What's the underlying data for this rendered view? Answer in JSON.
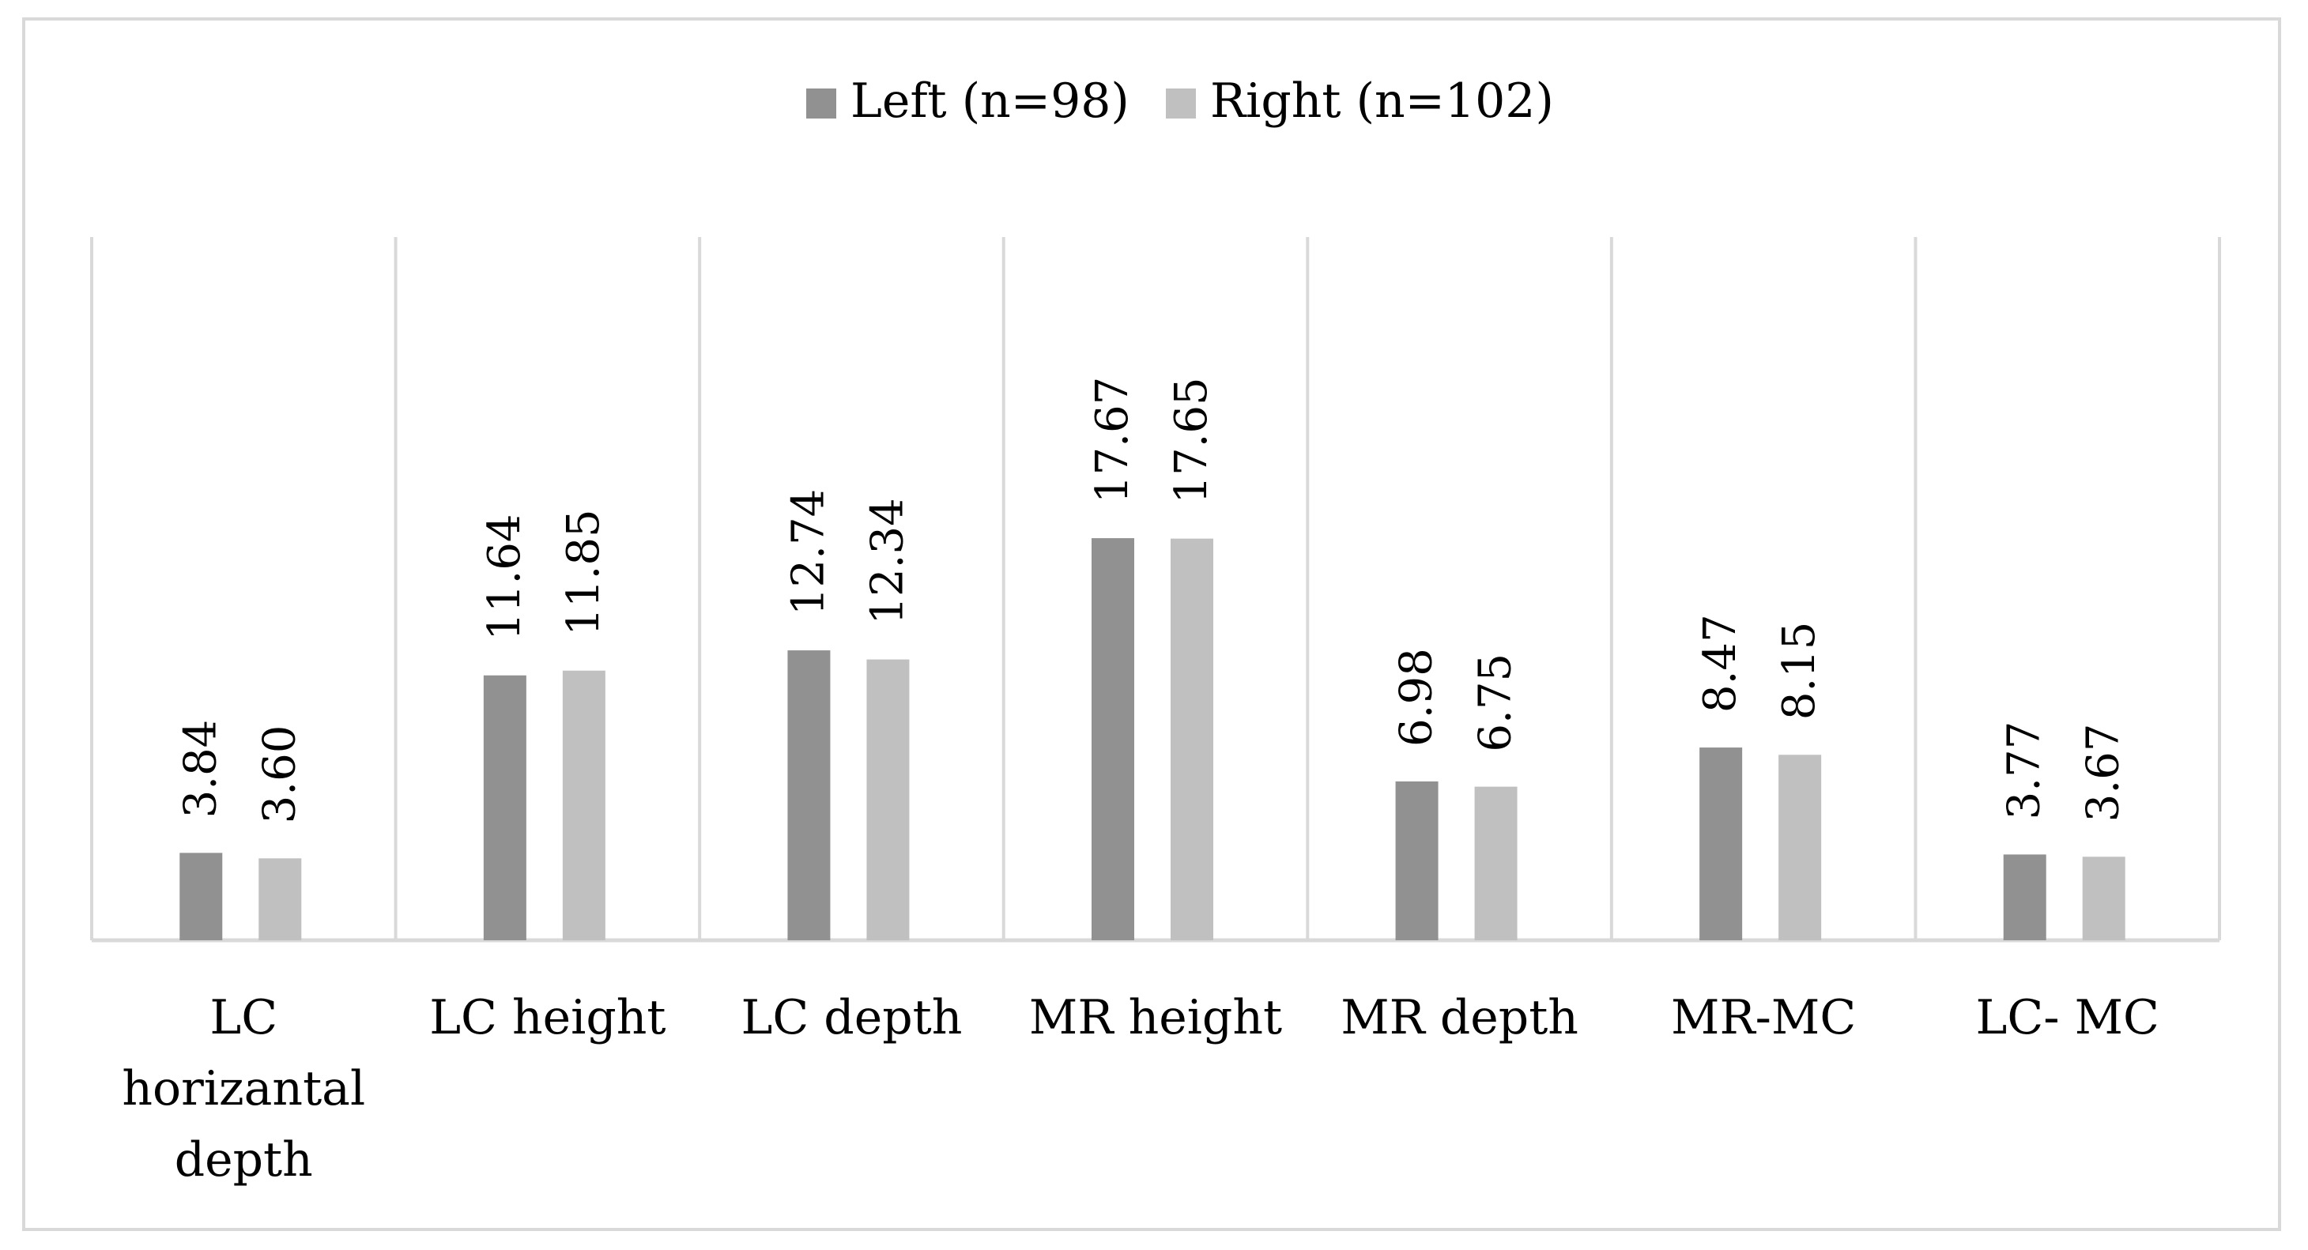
{
  "colors": {
    "left": "#919191",
    "right": "#c0c0c0",
    "axis": "#d9d9d9",
    "grid": "#d9d9d9"
  },
  "chart_data": {
    "type": "bar",
    "title": "",
    "xlabel": "",
    "ylabel": "",
    "ylim": [
      0,
      20
    ],
    "legend_position": "top-center",
    "categories": [
      "LC horizantal depth",
      "LC height",
      "LC depth",
      "MR height",
      "MR depth",
      "MR-MC",
      "LC- MC"
    ],
    "category_lines": [
      [
        "LC",
        "horizantal",
        "depth"
      ],
      [
        "LC height"
      ],
      [
        "LC depth"
      ],
      [
        "MR height"
      ],
      [
        "MR depth"
      ],
      [
        "MR-MC"
      ],
      [
        "LC- MC"
      ]
    ],
    "series": [
      {
        "name": "Left (n=98)",
        "values": [
          3.84,
          11.64,
          12.74,
          17.67,
          6.98,
          8.47,
          3.77
        ],
        "labels": [
          "3.84",
          "11.64",
          "12.74",
          "17.67",
          "6.98",
          "8.47",
          "3.77"
        ]
      },
      {
        "name": "Right (n=102)",
        "values": [
          3.6,
          11.85,
          12.34,
          17.65,
          6.75,
          8.15,
          3.67
        ],
        "labels": [
          "3.60",
          "11.85",
          "12.34",
          "17.65",
          "6.75",
          "8.15",
          "3.67"
        ]
      }
    ]
  }
}
